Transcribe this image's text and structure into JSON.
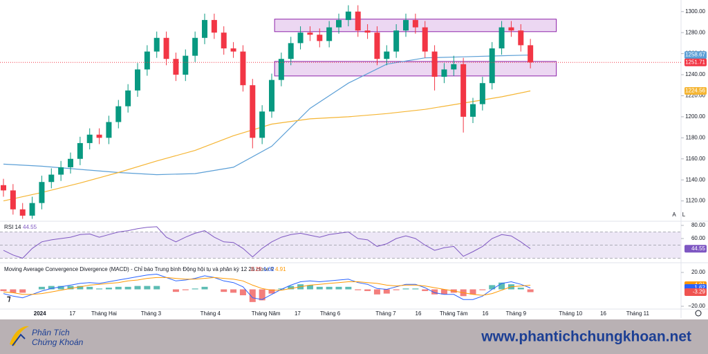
{
  "chart_data": [
    {
      "type": "candlestick",
      "xlim": [
        0,
        70
      ],
      "xticks": [
        {
          "value": 3.8,
          "label": "2024"
        },
        {
          "value": 7.2,
          "label": "17"
        },
        {
          "value": 10.5,
          "label": "Tháng Hai"
        },
        {
          "value": 15.4,
          "label": "Tháng 3"
        },
        {
          "value": 21.6,
          "label": "Tháng 4"
        },
        {
          "value": 27.4,
          "label": "Tháng Năm"
        },
        {
          "value": 30.7,
          "label": "17"
        },
        {
          "value": 34.1,
          "label": "Tháng 6"
        },
        {
          "value": 39.9,
          "label": "Tháng 7"
        },
        {
          "value": 43.3,
          "label": "16"
        },
        {
          "value": 47.0,
          "label": "Tháng Tám"
        },
        {
          "value": 50.3,
          "label": "16"
        },
        {
          "value": 53.5,
          "label": "Tháng 9"
        },
        {
          "value": 59.2,
          "label": "Tháng 10"
        },
        {
          "value": 62.6,
          "label": "16"
        },
        {
          "value": 66.2,
          "label": "Tháng 11"
        }
      ],
      "ylim": [
        1102,
        1311
      ],
      "yticks": [
        {
          "value": 1120,
          "label": "1120.00"
        },
        {
          "value": 1140,
          "label": "1140.00"
        },
        {
          "value": 1160,
          "label": "1160.00"
        },
        {
          "value": 1180,
          "label": "1180.00"
        },
        {
          "value": 1200,
          "label": "1200.00"
        },
        {
          "value": 1220,
          "label": "1220.00"
        },
        {
          "value": 1240,
          "label": "1240.00"
        },
        {
          "value": 1260,
          "label": "1260.00"
        },
        {
          "value": 1280,
          "label": "1280.00"
        },
        {
          "value": 1300,
          "label": "1300.00"
        }
      ],
      "up_color": "#089981",
      "down_color": "#f23645",
      "open": [
        1135,
        1130,
        1112,
        1106,
        1118,
        1138,
        1145,
        1152,
        1160,
        1175,
        1183,
        1180,
        1195,
        1210,
        1225,
        1245,
        1262,
        1275,
        1255,
        1240,
        1258,
        1275,
        1292,
        1280,
        1265,
        1262,
        1230,
        1180,
        1205,
        1235,
        1255,
        1270,
        1280,
        1278,
        1272,
        1285,
        1292,
        1300,
        1282,
        1280,
        1255,
        1262,
        1282,
        1292,
        1285,
        1262,
        1238,
        1245,
        1250,
        1200,
        1212,
        1232,
        1265,
        1285,
        1282,
        1268
      ],
      "high": [
        1141,
        1136,
        1118,
        1124,
        1144,
        1151,
        1158,
        1166,
        1181,
        1189,
        1189,
        1201,
        1216,
        1231,
        1251,
        1268,
        1281,
        1281,
        1261,
        1264,
        1281,
        1298,
        1298,
        1286,
        1271,
        1268,
        1236,
        1211,
        1241,
        1261,
        1276,
        1286,
        1286,
        1284,
        1291,
        1298,
        1306,
        1306,
        1288,
        1286,
        1268,
        1288,
        1298,
        1298,
        1291,
        1268,
        1251,
        1258,
        1256,
        1218,
        1238,
        1271,
        1291,
        1291,
        1288,
        1274
      ],
      "low": [
        1124,
        1107,
        1103,
        1103,
        1112,
        1132,
        1139,
        1146,
        1154,
        1169,
        1174,
        1174,
        1189,
        1204,
        1219,
        1239,
        1256,
        1249,
        1234,
        1234,
        1252,
        1269,
        1274,
        1259,
        1256,
        1224,
        1170,
        1174,
        1199,
        1229,
        1249,
        1264,
        1272,
        1266,
        1266,
        1279,
        1286,
        1276,
        1274,
        1249,
        1249,
        1256,
        1276,
        1279,
        1256,
        1225,
        1232,
        1239,
        1185,
        1194,
        1206,
        1226,
        1259,
        1276,
        1262,
        1246
      ],
      "close": [
        1130,
        1112,
        1106,
        1118,
        1138,
        1145,
        1152,
        1160,
        1175,
        1183,
        1180,
        1195,
        1210,
        1225,
        1245,
        1262,
        1275,
        1255,
        1240,
        1258,
        1275,
        1292,
        1280,
        1265,
        1262,
        1230,
        1180,
        1205,
        1235,
        1255,
        1270,
        1280,
        1278,
        1272,
        1285,
        1292,
        1300,
        1282,
        1280,
        1255,
        1262,
        1282,
        1292,
        1285,
        1262,
        1238,
        1245,
        1250,
        1200,
        1212,
        1232,
        1265,
        1285,
        1282,
        1268,
        1251.71
      ],
      "moving_averages": [
        {
          "color": "#5b9fd6",
          "x": [
            0,
            4,
            8,
            12,
            16,
            20,
            24,
            28,
            32,
            36,
            40,
            44,
            48,
            52,
            55
          ],
          "values": [
            1155,
            1153,
            1150,
            1147,
            1145,
            1146,
            1152,
            1172,
            1208,
            1232,
            1250,
            1256,
            1257,
            1258,
            1258.67
          ]
        },
        {
          "color": "#f5b533",
          "x": [
            0,
            4,
            8,
            12,
            16,
            20,
            24,
            28,
            32,
            36,
            40,
            44,
            48,
            52,
            55
          ],
          "values": [
            1120,
            1128,
            1137,
            1147,
            1158,
            1168,
            1182,
            1193,
            1198,
            1200,
            1203,
            1207,
            1213,
            1219,
            1224.56
          ]
        }
      ],
      "zones": [
        {
          "x": [
            28.3,
            57.7
          ],
          "y": [
            1280.9,
            1292.8
          ]
        },
        {
          "x": [
            28.3,
            57.7
          ],
          "y": [
            1238.8,
            1252.6
          ]
        }
      ],
      "zone_color": "#e6c9ee",
      "zone_stroke": "#8e24aa",
      "axis_buttons": [
        "A",
        "L"
      ]
    },
    {
      "type": "line",
      "title": "RSI 14",
      "color": "#7e57c2",
      "band_color": "#ede7f6",
      "ylim": [
        27.4,
        84.2
      ],
      "yticks": [
        {
          "value": 80,
          "label": "80.00"
        },
        {
          "value": 60,
          "label": "60.00"
        }
      ],
      "band": [
        30,
        70
      ],
      "levels": [
        70,
        50,
        30
      ],
      "values": [
        42,
        35,
        30,
        45,
        55,
        58,
        60,
        62,
        66,
        67,
        62,
        66,
        70,
        72,
        75,
        77,
        78,
        62,
        55,
        62,
        68,
        72,
        62,
        55,
        54,
        45,
        32,
        45,
        55,
        62,
        66,
        68,
        65,
        62,
        66,
        68,
        70,
        60,
        58,
        48,
        52,
        60,
        64,
        60,
        50,
        42,
        46,
        48,
        33,
        40,
        48,
        60,
        66,
        64,
        55,
        44.55
      ]
    },
    {
      "type": "macd",
      "title": "Moving Average Convergence Divergence (MACD) - Chỉ báo Trung bình Động hội tụ và phân kỳ 12 26 close 9",
      "ylim": [
        -23.3,
        28.2
      ],
      "yticks": [
        {
          "value": 20,
          "label": "20.00"
        },
        {
          "value": -20,
          "label": "−20.00"
        }
      ],
      "positive_color": "#26a69a",
      "series": [
        {
          "color": "#ef5350",
          "values": [
            -2,
            -4,
            -4,
            0,
            3,
            4,
            4,
            4,
            4,
            3,
            1,
            2,
            3,
            3,
            4,
            4,
            4,
            0,
            -3,
            -1,
            1,
            3,
            0,
            -3,
            -4,
            -7,
            -15,
            -13,
            -5,
            1,
            4,
            6,
            5,
            3,
            3,
            3,
            3,
            -1,
            -2,
            -6,
            -5,
            -1,
            1,
            1,
            -2,
            -6,
            -6,
            -4,
            -8,
            -6,
            -1,
            5,
            8,
            6,
            2,
            -3.29
          ]
        },
        {
          "color": "#2962ff",
          "values": [
            -5,
            -8,
            -10,
            -6,
            -2,
            1,
            3,
            5,
            7,
            8,
            7,
            9,
            11,
            13,
            15,
            17,
            18,
            14,
            10,
            11,
            13,
            16,
            14,
            10,
            8,
            3,
            -10,
            -12,
            -6,
            0,
            5,
            9,
            10,
            9,
            10,
            11,
            12,
            8,
            6,
            1,
            0,
            3,
            6,
            6,
            2,
            -4,
            -6,
            -6,
            -12,
            -12,
            -8,
            0,
            7,
            9,
            6,
            1.62
          ]
        },
        {
          "color": "#ff9800",
          "values": [
            -3,
            -4,
            -6,
            -6,
            -5,
            -3,
            -1,
            1,
            3,
            5,
            6,
            7,
            8,
            10,
            11,
            13,
            14,
            14,
            13,
            12,
            12,
            13,
            14,
            13,
            12,
            10,
            5,
            1,
            -1,
            -1,
            1,
            3,
            5,
            6,
            7,
            8,
            9,
            9,
            8,
            7,
            5,
            4,
            5,
            5,
            4,
            2,
            0,
            -2,
            -4,
            -6,
            -7,
            -5,
            -1,
            3,
            4,
            4.91
          ]
        }
      ]
    }
  ],
  "footer": {
    "brand": [
      "Phân Tích",
      "Chứng Khoán"
    ],
    "website": "www.phantichchungkhoan.net"
  }
}
